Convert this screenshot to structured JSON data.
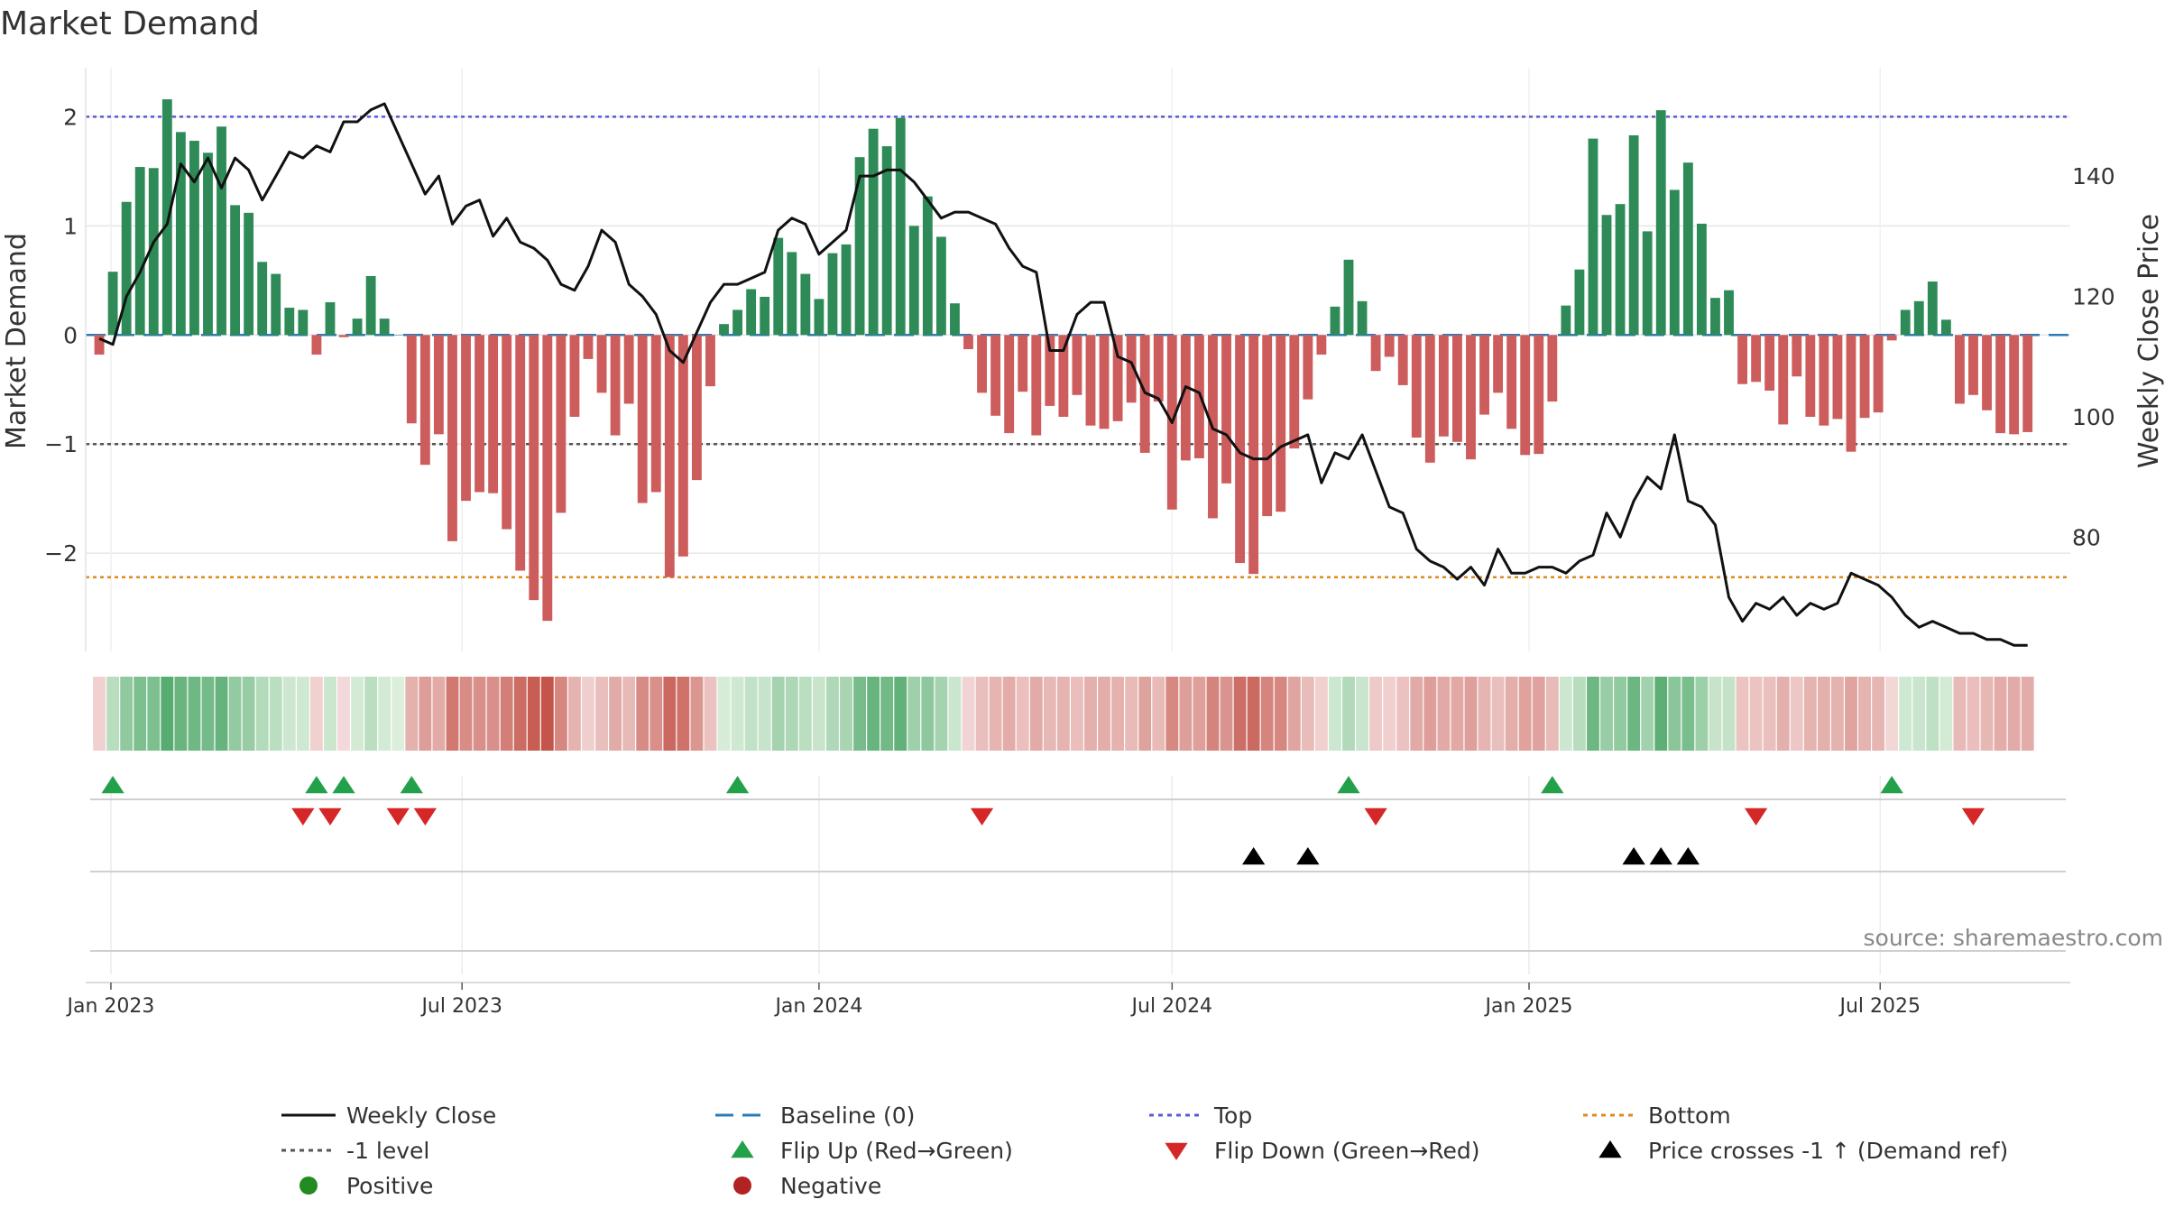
{
  "chart_data": {
    "type": "bar",
    "title": "Market Demand",
    "ylabel_left": "Market Demand",
    "ylabel_right": "Weekly Close Price",
    "source": "source: sharemaestro.com",
    "x_range": [
      "2022-12-19",
      "2025-10-07"
    ],
    "ylim_left": [
      -2.9,
      2.45
    ],
    "ylim_right": [
      61,
      158
    ],
    "left_ticks": [
      {
        "v": 2,
        "label": "2"
      },
      {
        "v": 1,
        "label": "1"
      },
      {
        "v": 0,
        "label": "0"
      },
      {
        "v": -1,
        "label": "−1"
      },
      {
        "v": -2,
        "label": "−2"
      }
    ],
    "right_ticks": [
      {
        "v": 140,
        "label": "140"
      },
      {
        "v": 120,
        "label": "120"
      },
      {
        "v": 100,
        "label": "100"
      },
      {
        "v": 80,
        "label": "80"
      }
    ],
    "date_ticks": [
      {
        "date": "2023-01-01",
        "label": "Jan 2023"
      },
      {
        "date": "2023-07-01",
        "label": "Jul 2023"
      },
      {
        "date": "2024-01-01",
        "label": "Jan 2024"
      },
      {
        "date": "2024-07-01",
        "label": "Jul 2024"
      },
      {
        "date": "2025-01-01",
        "label": "Jan 2025"
      },
      {
        "date": "2025-07-01",
        "label": "Jul 2025"
      }
    ],
    "reference_levels": {
      "top": 2.0,
      "minus_one": -1.0,
      "bottom": -2.22,
      "baseline": 0
    },
    "start_date": "2022-12-26",
    "demand": [
      -0.18,
      0.58,
      1.22,
      1.54,
      1.53,
      2.16,
      1.86,
      1.78,
      1.67,
      1.91,
      1.19,
      1.12,
      0.67,
      0.56,
      0.25,
      0.23,
      -0.18,
      0.3,
      -0.02,
      0.15,
      0.54,
      0.15,
      0.0,
      -0.81,
      -1.19,
      -0.91,
      -1.89,
      -1.52,
      -1.44,
      -1.45,
      -1.78,
      -2.16,
      -2.43,
      -2.62,
      -1.63,
      -0.75,
      -0.22,
      -0.53,
      -0.92,
      -0.63,
      -1.54,
      -1.44,
      -2.22,
      -2.03,
      -1.33,
      -0.47,
      0.1,
      0.23,
      0.42,
      0.35,
      0.89,
      0.76,
      0.56,
      0.33,
      0.75,
      0.83,
      1.63,
      1.89,
      1.73,
      1.99,
      1.0,
      1.27,
      0.9,
      0.29,
      -0.13,
      -0.53,
      -0.74,
      -0.9,
      -0.52,
      -0.92,
      -0.65,
      -0.75,
      -0.55,
      -0.83,
      -0.86,
      -0.79,
      -0.62,
      -1.08,
      -0.61,
      -1.6,
      -1.15,
      -1.13,
      -1.68,
      -1.36,
      -2.09,
      -2.19,
      -1.66,
      -1.62,
      -1.04,
      -0.59,
      -0.18,
      0.26,
      0.69,
      0.31,
      -0.33,
      -0.2,
      -0.46,
      -0.94,
      -1.17,
      -0.93,
      -0.98,
      -1.14,
      -0.73,
      -0.53,
      -0.86,
      -1.1,
      -1.09,
      -0.61,
      0.27,
      0.6,
      1.8,
      1.1,
      1.2,
      1.83,
      0.95,
      2.06,
      1.33,
      1.58,
      1.02,
      0.34,
      0.41,
      -0.45,
      -0.43,
      -0.51,
      -0.82,
      -0.38,
      -0.75,
      -0.83,
      -0.77,
      -1.07,
      -0.76,
      -0.71,
      -0.05,
      0.23,
      0.31,
      0.49,
      0.14,
      -0.63,
      -0.55,
      -0.69,
      -0.9,
      -0.91,
      -0.89
    ],
    "close": [
      113,
      112,
      120,
      124,
      129,
      132,
      142,
      139,
      143,
      138,
      143,
      141,
      136,
      140,
      144,
      143,
      145,
      144,
      149,
      149,
      151,
      152,
      147,
      142,
      137,
      140,
      132,
      135,
      136,
      130,
      133,
      129,
      128,
      126,
      122,
      121,
      125,
      131,
      129,
      122,
      120,
      117,
      111,
      109,
      114,
      119,
      122,
      122,
      123,
      124,
      131,
      133,
      132,
      127,
      129,
      131,
      140,
      140,
      141,
      141,
      139,
      136,
      133,
      134,
      134,
      133,
      132,
      128,
      125,
      124,
      111,
      111,
      117,
      119,
      119,
      110,
      109,
      104,
      103,
      99,
      105,
      104,
      98,
      97,
      94,
      93,
      93,
      95,
      96,
      97,
      89,
      94,
      93,
      97,
      91,
      85,
      84,
      78,
      76,
      75,
      73,
      75,
      72,
      78,
      74,
      74,
      75,
      75,
      74,
      76,
      77,
      84,
      80,
      86,
      90,
      88,
      97,
      86,
      85,
      82,
      70,
      66,
      69,
      68,
      70,
      67,
      69,
      68,
      69,
      74,
      73,
      72,
      70,
      67,
      65,
      66,
      65,
      64,
      64,
      63,
      63,
      62,
      62
    ],
    "flip_up": [
      "2023-01-02",
      "2023-04-17",
      "2023-05-01",
      "2023-06-05",
      "2023-11-20",
      "2024-09-30",
      "2025-01-13",
      "2025-07-07"
    ],
    "flip_down": [
      "2023-04-10",
      "2023-04-24",
      "2023-05-29",
      "2023-06-12",
      "2024-03-25",
      "2024-10-14",
      "2025-04-28",
      "2025-08-18"
    ],
    "price_crosses": [
      "2024-08-12",
      "2024-09-09",
      "2025-02-24",
      "2025-03-10",
      "2025-03-24"
    ],
    "legend": [
      {
        "label": "Weekly Close",
        "kind": "line",
        "color": "#111111"
      },
      {
        "label": "Baseline (0)",
        "kind": "dash",
        "color": "#2b7bb9"
      },
      {
        "label": "Top",
        "kind": "dot",
        "color": "#5b5bd6"
      },
      {
        "label": "Bottom",
        "kind": "dot",
        "color": "#e08a1e"
      },
      {
        "label": "-1 level",
        "kind": "dot",
        "color": "#555555"
      },
      {
        "label": "Flip Up (Red→Green)",
        "kind": "tri-up",
        "color": "#22a04a"
      },
      {
        "label": "Flip Down (Green→Red)",
        "kind": "tri-down",
        "color": "#d62728"
      },
      {
        "label": "Price crosses -1 ↑ (Demand ref)",
        "kind": "tri-up",
        "color": "#000000"
      },
      {
        "label": "Positive",
        "kind": "circle",
        "color": "#228b22"
      },
      {
        "label": "Negative",
        "kind": "circle",
        "color": "#b22222"
      }
    ],
    "colors": {
      "positive_bar": "#2e8b57",
      "negative_bar": "#cd5c5c",
      "price_line": "#111111",
      "grid": "#e6e6e6"
    }
  }
}
